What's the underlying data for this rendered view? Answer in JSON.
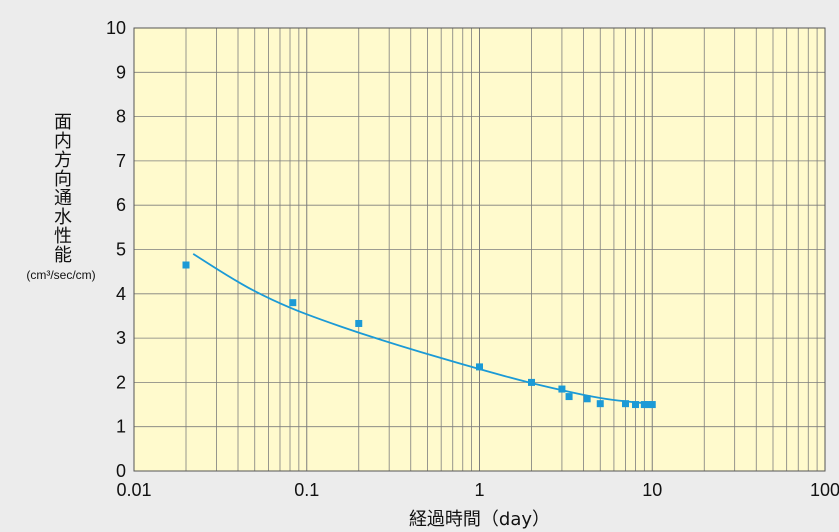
{
  "chart_data": {
    "type": "scatter",
    "xscale": "log",
    "xlim": [
      0.01,
      100
    ],
    "ylim": [
      0,
      10
    ],
    "grid": true,
    "xlabel": "経過時間（day）",
    "ylabel": "面内方向通水性能",
    "ylabel_unit": "(cm³/sec/cm)",
    "x_tick_values": [
      0.01,
      0.1,
      1,
      10,
      100
    ],
    "x_tick_labels": [
      "0.01",
      "0.1",
      "1",
      "10",
      "100"
    ],
    "y_tick_values": [
      0,
      1,
      2,
      3,
      4,
      5,
      6,
      7,
      8,
      9,
      10
    ],
    "y_tick_labels": [
      "0",
      "1",
      "2",
      "3",
      "4",
      "5",
      "6",
      "7",
      "8",
      "9",
      "10"
    ],
    "series": [
      {
        "marker": "square",
        "x": [
          0.02,
          0.083,
          0.2,
          1,
          2,
          3,
          3.3,
          4.2,
          5,
          7,
          8,
          9,
          9.5,
          10
        ],
        "y": [
          4.65,
          3.8,
          3.33,
          2.35,
          2.0,
          1.85,
          1.68,
          1.63,
          1.52,
          1.52,
          1.5,
          1.5,
          1.5,
          1.5
        ]
      }
    ],
    "trendline": {
      "x": [
        0.022,
        0.035,
        0.05,
        0.08,
        0.12,
        0.2,
        0.35,
        0.6,
        1,
        1.7,
        3,
        5,
        7,
        8.5,
        10
      ],
      "y": [
        4.9,
        4.4,
        4.05,
        3.68,
        3.42,
        3.12,
        2.82,
        2.55,
        2.3,
        2.05,
        1.82,
        1.64,
        1.57,
        1.54,
        1.52
      ]
    },
    "colors": {
      "plot_background": "#fffacd",
      "page_background": "#ececec",
      "grid": "#7d7d7d",
      "series": "#1b9ad6",
      "trendline": "#1b9ad6"
    }
  }
}
